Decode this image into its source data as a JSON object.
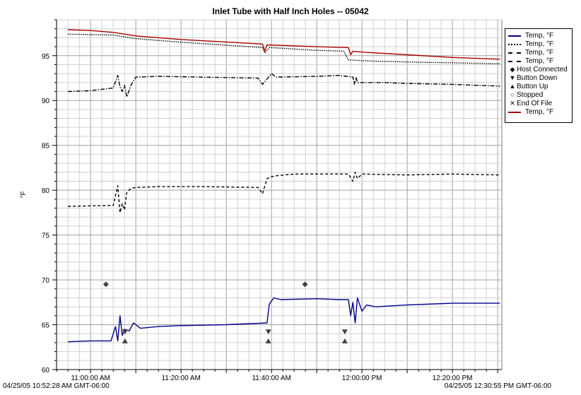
{
  "chart_data": {
    "type": "line",
    "title": "Inlet Tube with Half Inch Holes -- 05042",
    "ylabel": "°F",
    "xlabel": "",
    "ylim": [
      60,
      99
    ],
    "xlim_minutes": [
      -7.53,
      90.92
    ],
    "yticks": [
      60,
      65,
      70,
      75,
      80,
      85,
      90,
      95
    ],
    "xticks": [
      {
        "t": 0,
        "label": "11:00:00 AM"
      },
      {
        "t": 20,
        "label": "11:20:00 AM"
      },
      {
        "t": 40,
        "label": "11:40:00 AM"
      },
      {
        "t": 60,
        "label": "12:00:00 PM"
      },
      {
        "t": 80,
        "label": "12:20:00 PM"
      }
    ],
    "x_units": "minutes after 11:00:00 AM",
    "start_label": "04/25/05 10:52:28 AM GMT-06:00",
    "end_label": "04/25/05 12:30:55 PM GMT-06:00",
    "grid": true,
    "legend_position": "top-right",
    "series": [
      {
        "name": "Temp, °F",
        "color": "#00008b",
        "style": "solid",
        "x": [
          -5,
          0,
          4.5,
          5.5,
          6,
          6.5,
          7,
          7.5,
          8.5,
          9.5,
          11,
          15,
          20,
          30,
          39,
          39.5,
          40.5,
          42,
          50,
          55,
          57,
          57.5,
          58,
          58.5,
          59,
          60,
          61,
          63,
          70,
          80,
          90.5
        ],
        "y": [
          63.1,
          63.2,
          63.2,
          64.8,
          63.2,
          66.0,
          63.8,
          64.5,
          64.3,
          65.2,
          64.6,
          64.8,
          64.9,
          65.0,
          65.2,
          67.3,
          68.0,
          67.8,
          67.9,
          67.8,
          67.8,
          66.0,
          67.5,
          65.2,
          68.0,
          66.5,
          67.2,
          67.0,
          67.2,
          67.4,
          67.4
        ]
      },
      {
        "name": "Temp, °F",
        "color": "#000000",
        "style": "dotted",
        "x": [
          -5,
          5,
          10,
          20,
          38,
          38.5,
          39.5,
          50,
          56,
          57,
          58,
          62,
          70,
          80,
          90.5
        ],
        "y": [
          97.4,
          97.3,
          96.9,
          96.5,
          95.9,
          95.3,
          95.9,
          95.6,
          95.5,
          94.5,
          94.5,
          94.4,
          94.3,
          94.2,
          94.1
        ]
      },
      {
        "name": "Temp, °F",
        "color": "#000000",
        "style": "dash-dot",
        "x": [
          -5,
          0,
          5,
          6,
          6.5,
          7,
          7.5,
          8,
          9,
          10,
          15,
          25,
          37,
          38,
          39,
          40,
          41,
          50,
          55,
          58,
          58.3,
          58.7,
          59,
          60,
          65,
          70,
          80,
          90.5
        ],
        "y": [
          91.0,
          91.1,
          91.4,
          92.8,
          91.5,
          91.0,
          91.7,
          90.4,
          91.8,
          92.6,
          92.7,
          92.6,
          92.5,
          91.8,
          92.4,
          93.0,
          92.6,
          92.7,
          92.8,
          92.6,
          91.8,
          92.6,
          92.0,
          92.0,
          92.0,
          91.9,
          91.8,
          91.6
        ]
      },
      {
        "name": "Temp, °F",
        "color": "#000000",
        "style": "dashed",
        "x": [
          -5,
          5,
          6,
          6.5,
          7,
          7.5,
          8,
          9,
          10,
          15,
          25,
          37,
          38,
          39,
          40,
          41,
          45,
          50,
          57,
          58,
          58.5,
          59,
          60,
          70,
          80,
          90.5
        ],
        "y": [
          78.2,
          78.3,
          80.5,
          77.5,
          78.5,
          77.8,
          79.8,
          80.2,
          80.3,
          80.4,
          80.4,
          80.3,
          79.6,
          81.3,
          81.5,
          81.6,
          81.8,
          81.8,
          81.8,
          81.0,
          82.0,
          81.3,
          81.8,
          81.7,
          81.8,
          81.7
        ]
      },
      {
        "name": "Temp, °F",
        "color": "#aa0000",
        "style": "solid",
        "x": [
          -5,
          0,
          5,
          10,
          20,
          38,
          38.5,
          39,
          50,
          57,
          57.5,
          58,
          60,
          70,
          80,
          90.5
        ],
        "y": [
          97.9,
          97.8,
          97.6,
          97.2,
          96.8,
          96.3,
          95.5,
          96.2,
          96.0,
          95.9,
          95.1,
          95.5,
          95.4,
          95.1,
          94.8,
          94.6
        ]
      }
    ],
    "markers": [
      {
        "name": "Host Connected",
        "symbol": "diamond",
        "points": [
          [
            3.4,
            69.5
          ],
          [
            47.4,
            69.5
          ]
        ]
      },
      {
        "name": "Button Down",
        "symbol": "triangle-down",
        "points": [
          [
            7.6,
            64.2
          ],
          [
            39.3,
            64.2
          ],
          [
            56.2,
            64.2
          ]
        ]
      },
      {
        "name": "Button Up",
        "symbol": "triangle-up",
        "points": [
          [
            7.6,
            63.2
          ],
          [
            39.3,
            63.2
          ],
          [
            56.2,
            63.2
          ]
        ]
      }
    ],
    "legend": [
      {
        "label": "Temp, °F",
        "kind": "line",
        "color": "#00008b",
        "style": "solid"
      },
      {
        "label": "Temp, °F",
        "kind": "line",
        "color": "#000000",
        "style": "dotted"
      },
      {
        "label": "Temp, °F",
        "kind": "line",
        "color": "#000000",
        "style": "dash-dot"
      },
      {
        "label": "Temp, °F",
        "kind": "line",
        "color": "#000000",
        "style": "dashed"
      },
      {
        "label": "Host Connected",
        "kind": "symbol",
        "symbol": "◆"
      },
      {
        "label": "Button Down",
        "kind": "symbol",
        "symbol": "▼"
      },
      {
        "label": "Button Up",
        "kind": "symbol",
        "symbol": "▲"
      },
      {
        "label": "Stopped",
        "kind": "symbol",
        "symbol": "○"
      },
      {
        "label": "End Of File",
        "kind": "symbol",
        "symbol": "✕"
      },
      {
        "label": "Temp, °F",
        "kind": "line",
        "color": "#aa0000",
        "style": "solid"
      }
    ]
  }
}
